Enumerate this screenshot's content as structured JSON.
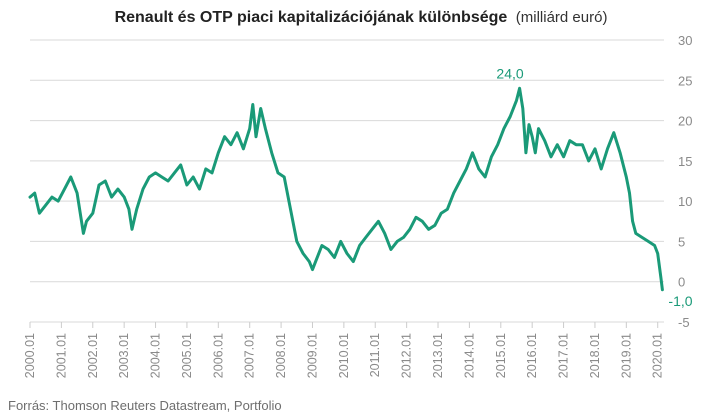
{
  "chart_data": {
    "type": "line",
    "title_main": "Renault és OTP piaci kapitalizációjának különbsége",
    "title_unit": "(milliárd euró)",
    "source": "Forrás: Thomson Reuters Datastream, Portfolio",
    "ylim": [
      -5,
      30
    ],
    "yticks": [
      "30",
      "25",
      "20",
      "15",
      "10",
      "5",
      "0",
      "-5"
    ],
    "xlim": [
      2000.0,
      2020.2
    ],
    "xticks": [
      "2000.01",
      "2001.01",
      "2002.01",
      "2003.01",
      "2004.01",
      "2005.01",
      "2006.01",
      "2007.01",
      "2008.01",
      "2009.01",
      "2010.01",
      "2011.01",
      "2012.01",
      "2013.01",
      "2014.01",
      "2015.01",
      "2016.01",
      "2017.01",
      "2018.01",
      "2019.01",
      "2020.01"
    ],
    "grid": true,
    "y_axis_side": "right",
    "line_color": "#1a9a78",
    "annotations": [
      {
        "text": "24,0",
        "x": 2015.55,
        "y": 24.0
      },
      {
        "text": "-1,0",
        "x": 2020.15,
        "y": -1.0
      }
    ],
    "series": [
      {
        "x": [
          2000.0,
          2000.15,
          2000.3,
          2000.5,
          2000.7,
          2000.9,
          2001.1,
          2001.3,
          2001.5,
          2001.7,
          2001.8,
          2002.0,
          2002.2,
          2002.4,
          2002.6,
          2002.8,
          2003.0,
          2003.15,
          2003.25,
          2003.4,
          2003.6,
          2003.8,
          2004.0,
          2004.2,
          2004.4,
          2004.6,
          2004.8,
          2005.0,
          2005.2,
          2005.4,
          2005.6,
          2005.8,
          2006.0,
          2006.2,
          2006.4,
          2006.6,
          2006.8,
          2007.0,
          2007.1,
          2007.2,
          2007.35,
          2007.5,
          2007.7,
          2007.9,
          2008.1,
          2008.3,
          2008.5,
          2008.7,
          2008.9,
          2009.0,
          2009.1,
          2009.3,
          2009.5,
          2009.7,
          2009.9,
          2010.1,
          2010.3,
          2010.5,
          2010.7,
          2010.9,
          2011.1,
          2011.3,
          2011.5,
          2011.7,
          2011.9,
          2012.1,
          2012.3,
          2012.5,
          2012.7,
          2012.9,
          2013.1,
          2013.3,
          2013.5,
          2013.7,
          2013.9,
          2014.1,
          2014.3,
          2014.5,
          2014.7,
          2014.9,
          2015.1,
          2015.3,
          2015.5,
          2015.6,
          2015.7,
          2015.8,
          2015.9,
          2016.0,
          2016.1,
          2016.2,
          2016.4,
          2016.6,
          2016.8,
          2017.0,
          2017.2,
          2017.4,
          2017.6,
          2017.8,
          2018.0,
          2018.2,
          2018.4,
          2018.6,
          2018.8,
          2019.0,
          2019.1,
          2019.2,
          2019.3,
          2019.5,
          2019.7,
          2019.9,
          2020.0,
          2020.1,
          2020.15
        ],
        "y": [
          10.5,
          11.0,
          8.5,
          9.5,
          10.5,
          10.0,
          11.5,
          13.0,
          11.0,
          6.0,
          7.5,
          8.5,
          12.0,
          12.5,
          10.5,
          11.5,
          10.5,
          9.0,
          6.5,
          9.0,
          11.5,
          13.0,
          13.5,
          13.0,
          12.5,
          13.5,
          14.5,
          12.0,
          13.0,
          11.5,
          14.0,
          13.5,
          16.0,
          18.0,
          17.0,
          18.5,
          16.5,
          19.0,
          22.0,
          18.0,
          21.5,
          19.0,
          16.0,
          13.5,
          13.0,
          9.0,
          5.0,
          3.5,
          2.5,
          1.5,
          2.5,
          4.5,
          4.0,
          3.0,
          5.0,
          3.5,
          2.5,
          4.5,
          5.5,
          6.5,
          7.5,
          6.0,
          4.0,
          5.0,
          5.5,
          6.5,
          8.0,
          7.5,
          6.5,
          7.0,
          8.5,
          9.0,
          11.0,
          12.5,
          14.0,
          16.0,
          14.0,
          13.0,
          15.5,
          17.0,
          19.0,
          20.5,
          22.5,
          24.0,
          21.5,
          16.0,
          19.5,
          18.0,
          16.0,
          19.0,
          17.5,
          15.5,
          17.0,
          15.5,
          17.5,
          17.0,
          17.0,
          15.0,
          16.5,
          14.0,
          16.5,
          18.5,
          16.0,
          13.0,
          11.0,
          7.5,
          6.0,
          5.5,
          5.0,
          4.5,
          3.5,
          0.5,
          -1.0
        ]
      }
    ]
  }
}
